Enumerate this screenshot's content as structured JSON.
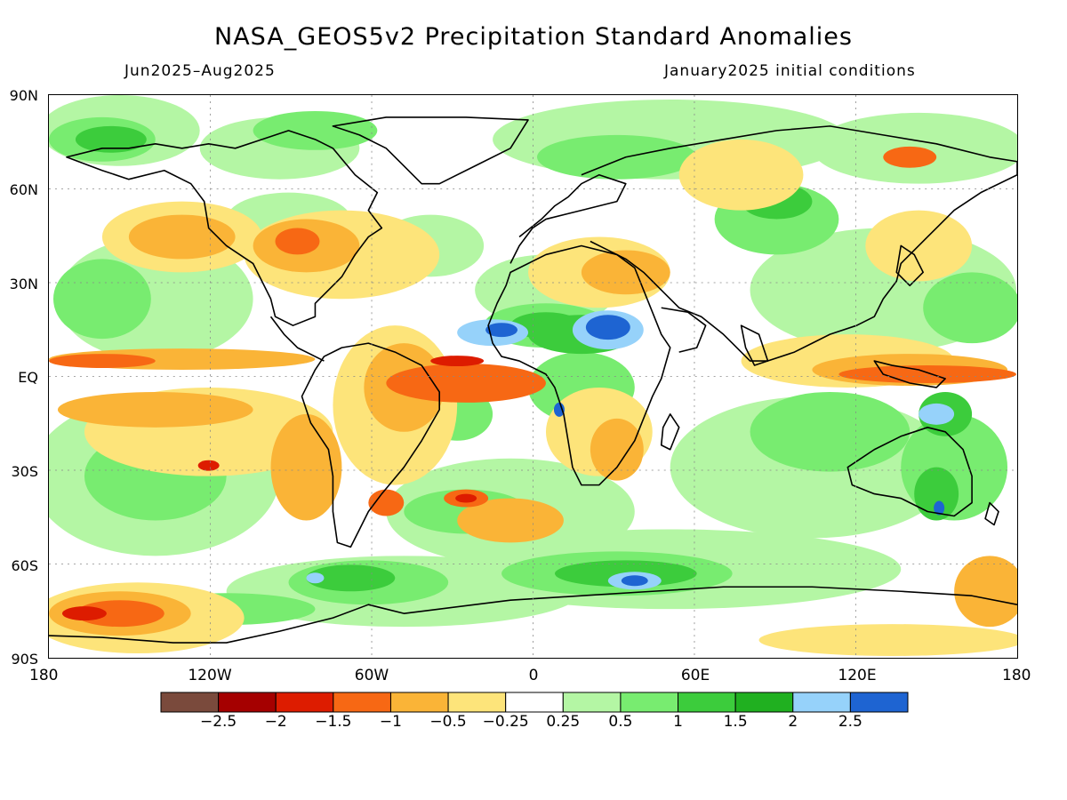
{
  "title": "NASA_GEOS5v2 Precipitation Standard Anomalies",
  "period": "Jun2025–Aug2025",
  "initial_conditions": "January2025 initial conditions",
  "lat_labels": [
    "90N",
    "60N",
    "30N",
    "EQ",
    "30S",
    "60S",
    "90S"
  ],
  "lon_labels": [
    "180",
    "120W",
    "60W",
    "0",
    "60E",
    "120E",
    "180"
  ],
  "colorbar": {
    "colors": [
      "#7a4a3c",
      "#a50000",
      "#dd1c00",
      "#f76814",
      "#fab437",
      "#fde47a",
      "#ffffff",
      "#b4f6a4",
      "#78ec70",
      "#3ccc3c",
      "#20b020",
      "#96d2fa",
      "#1e64d2"
    ],
    "labels": [
      "−2.5",
      "−2",
      "−1.5",
      "−1",
      "−0.5",
      "−0.25",
      "0.25",
      "0.5",
      "1",
      "1.5",
      "2",
      "2.5"
    ]
  },
  "colors": {
    "dry_strong": "#dd1c00",
    "dry_moderate": "#f76814",
    "dry_weak": "#fab437",
    "dry_slight": "#fde47a",
    "wet_slight": "#b4f6a4",
    "wet_weak": "#78ec70",
    "wet_moderate": "#3ccc3c",
    "wet_strong": "#96d2fa",
    "wet_extreme": "#1e64d2"
  }
}
